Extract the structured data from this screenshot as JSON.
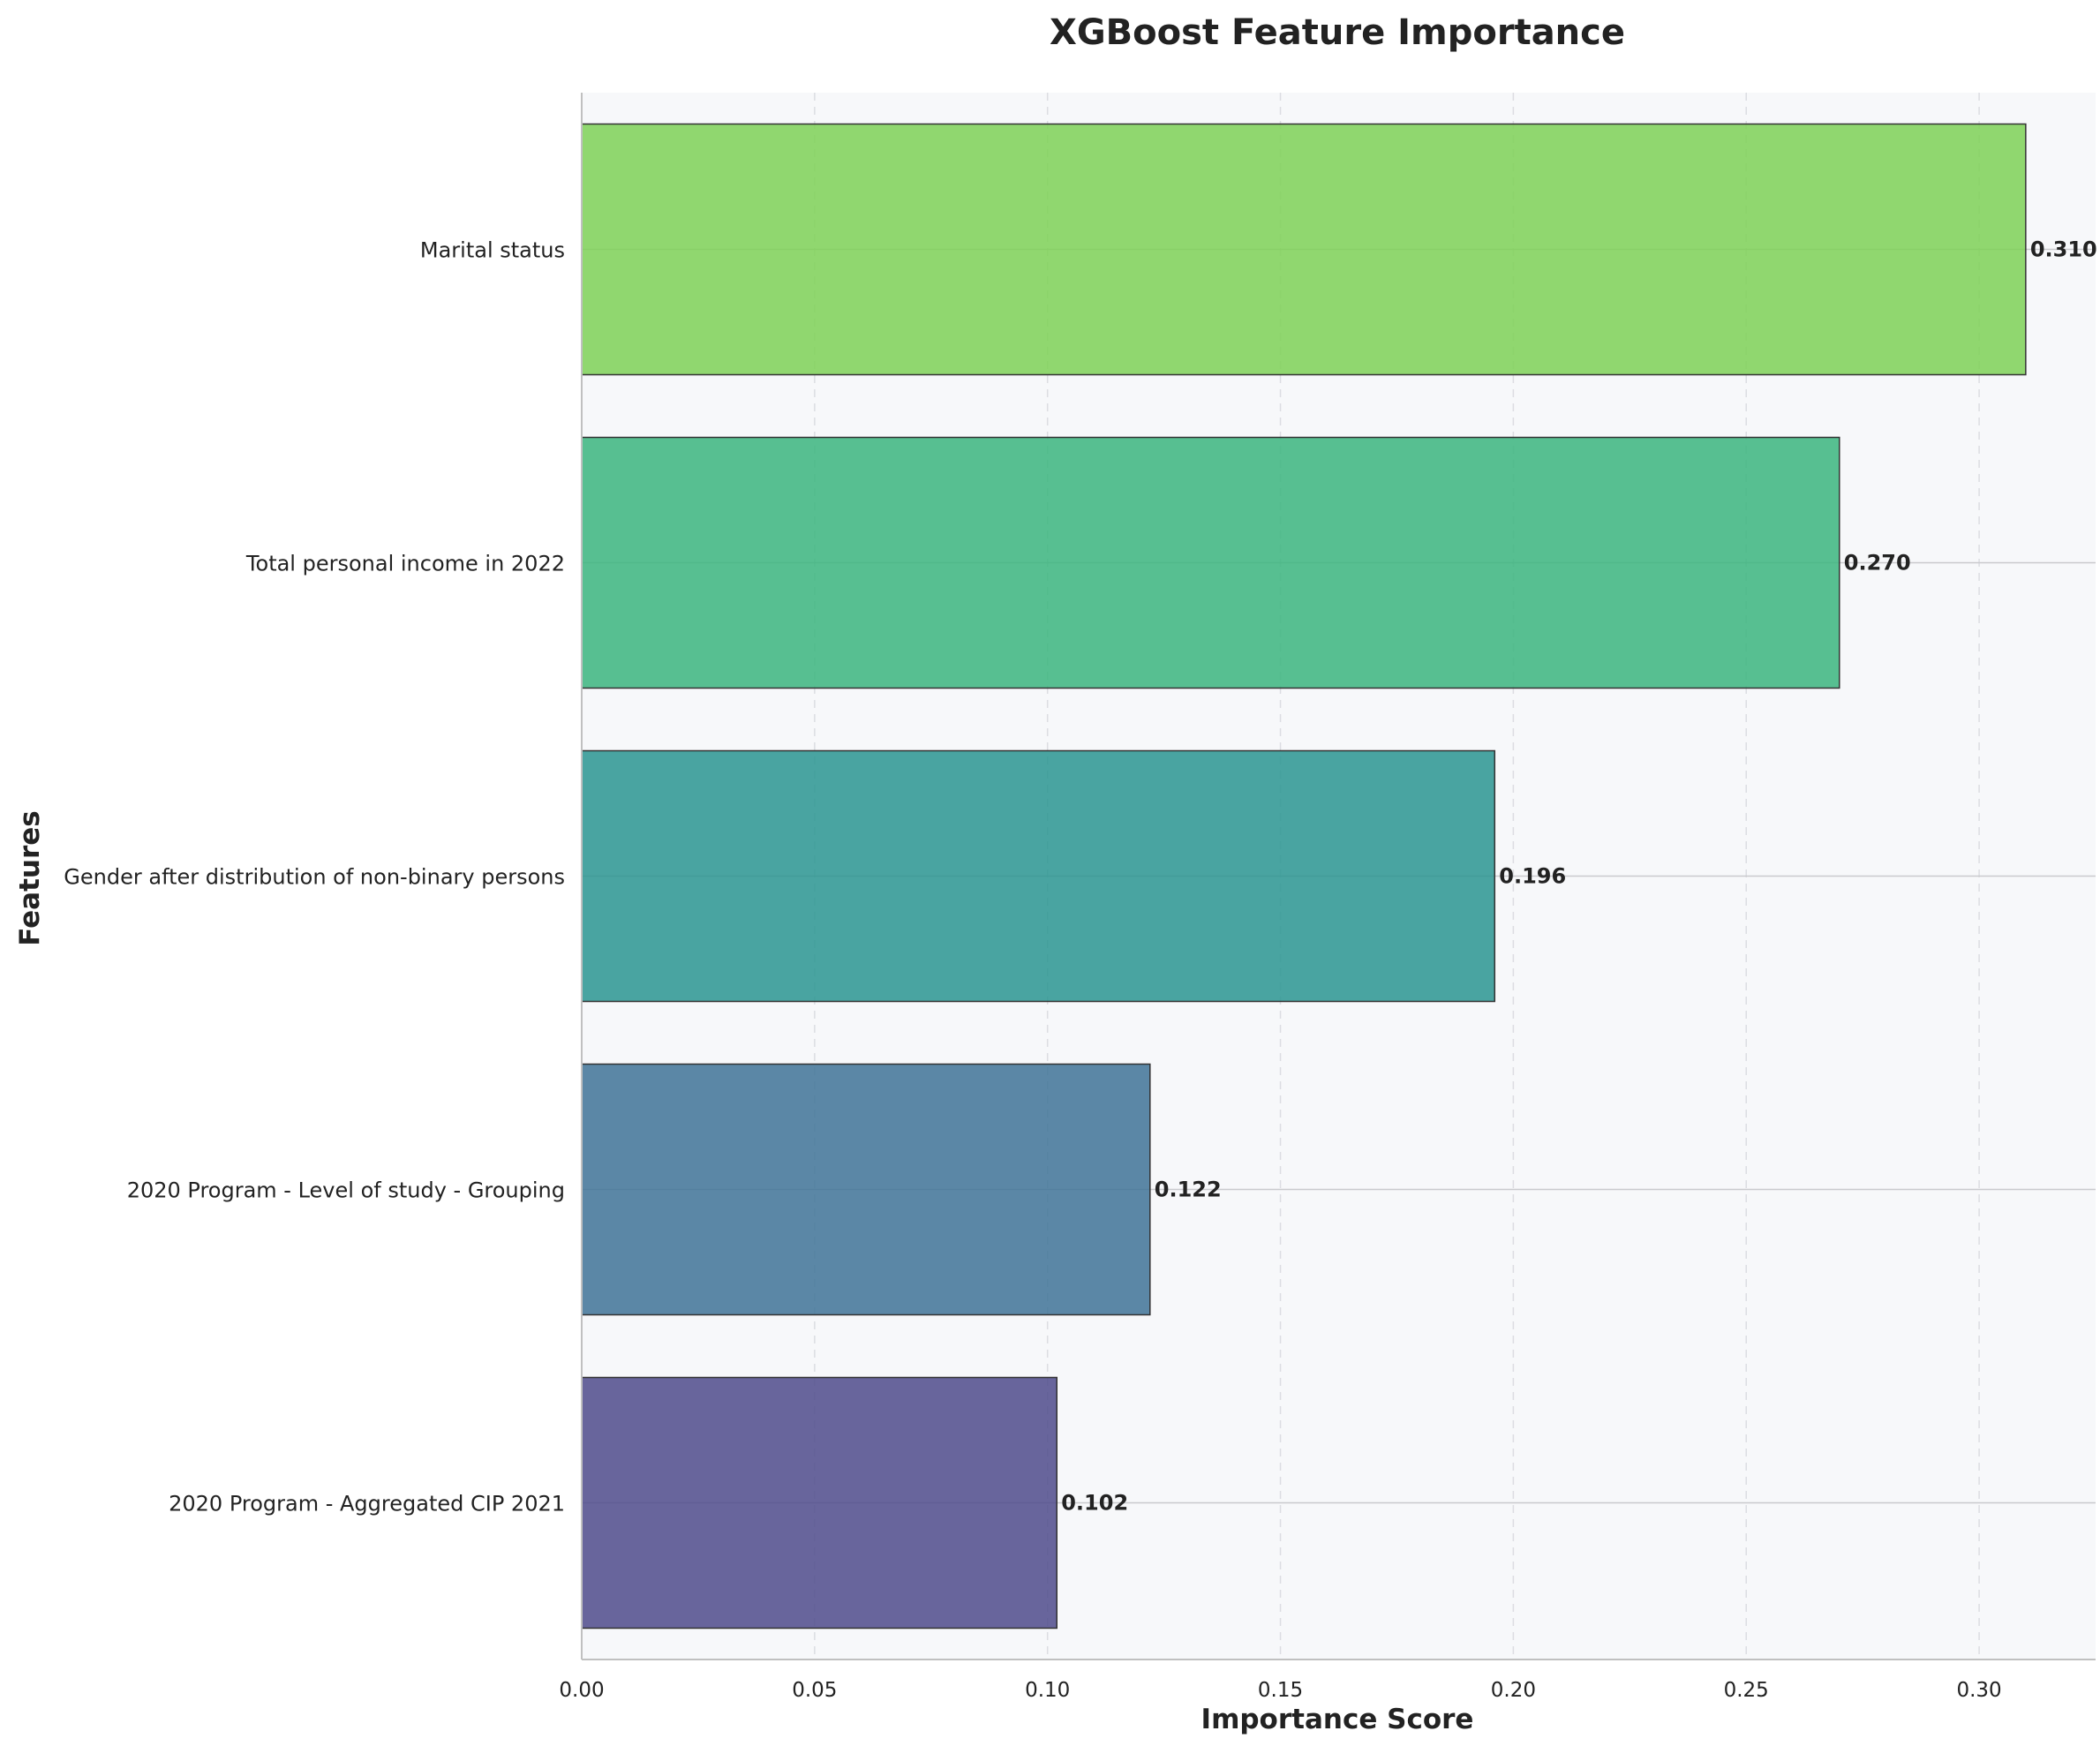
{
  "chart_data": {
    "type": "bar",
    "orientation": "horizontal",
    "title": "XGBoost Feature Importance",
    "xlabel": "Importance Score",
    "ylabel": "Features",
    "xlim": [
      0,
      0.325
    ],
    "x_ticks": [
      0.0,
      0.05,
      0.1,
      0.15,
      0.2,
      0.25,
      0.3
    ],
    "x_tick_labels": [
      "0.00",
      "0.05",
      "0.10",
      "0.15",
      "0.20",
      "0.25",
      "0.30"
    ],
    "grid": "x-dashed",
    "legend": "none",
    "categories": [
      "Marital status",
      "Total personal income in 2022",
      "Gender after distribution of non-binary persons",
      "2020 Program - Level of study - Grouping",
      "2020 Program - Aggregated CIP 2021"
    ],
    "values": [
      0.31,
      0.27,
      0.196,
      0.122,
      0.102
    ],
    "value_labels": [
      "0.310",
      "0.270",
      "0.196",
      "0.122",
      "0.102"
    ],
    "colors": [
      "#7ed156",
      "#3bb57e",
      "#2a9591",
      "#3f7396",
      "#4f4b8b"
    ],
    "plot_background": "#f7f8fa"
  }
}
